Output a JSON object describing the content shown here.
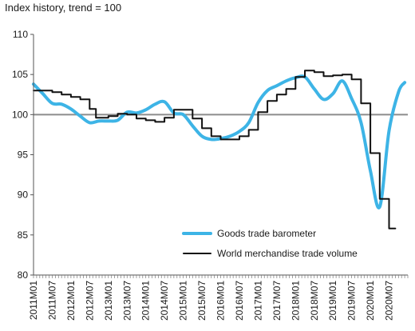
{
  "chart_data": {
    "type": "line",
    "title": "Index history, trend = 100",
    "xlabel": "",
    "ylabel": "",
    "ylim": [
      80,
      110
    ],
    "yticks": [
      80,
      85,
      90,
      95,
      100,
      105,
      110
    ],
    "reference_line": 100,
    "x_tick_labels": [
      "2011M01",
      "2011M07",
      "2012M01",
      "2012M07",
      "2013M01",
      "2013M07",
      "2014M01",
      "2014M07",
      "2015M01",
      "2015M07",
      "2016M01",
      "2016M07",
      "2017M01",
      "2017M07",
      "2018M01",
      "2018M07",
      "2019M01",
      "2019M07",
      "2020M01",
      "2020M07"
    ],
    "legend_position": "bottom-right",
    "series": [
      {
        "name": "Goods trade barometer",
        "color": "#3db4e6",
        "style": "line",
        "points": [
          [
            "2011M01",
            103.8
          ],
          [
            "2011M04",
            102.6
          ],
          [
            "2011M07",
            101.4
          ],
          [
            "2011M10",
            101.3
          ],
          [
            "2012M01",
            100.7
          ],
          [
            "2012M04",
            99.8
          ],
          [
            "2012M07",
            99.0
          ],
          [
            "2012M10",
            99.2
          ],
          [
            "2013M01",
            99.2
          ],
          [
            "2013M04",
            99.3
          ],
          [
            "2013M07",
            100.3
          ],
          [
            "2013M10",
            100.2
          ],
          [
            "2014M01",
            100.6
          ],
          [
            "2014M04",
            101.3
          ],
          [
            "2014M07",
            101.6
          ],
          [
            "2014M10",
            100.2
          ],
          [
            "2015M01",
            100.0
          ],
          [
            "2015M04",
            98.6
          ],
          [
            "2015M07",
            97.3
          ],
          [
            "2015M10",
            96.9
          ],
          [
            "2016M01",
            97.0
          ],
          [
            "2016M04",
            97.3
          ],
          [
            "2016M07",
            97.9
          ],
          [
            "2016M10",
            99.0
          ],
          [
            "2017M01",
            101.5
          ],
          [
            "2017M04",
            103.0
          ],
          [
            "2017M07",
            103.6
          ],
          [
            "2017M10",
            104.2
          ],
          [
            "2018M01",
            104.6
          ],
          [
            "2018M04",
            104.7
          ],
          [
            "2018M07",
            103.2
          ],
          [
            "2018M10",
            101.9
          ],
          [
            "2019M01",
            102.6
          ],
          [
            "2019M04",
            104.2
          ],
          [
            "2019M07",
            102.0
          ],
          [
            "2019M10",
            99.0
          ],
          [
            "2020M01",
            93.0
          ],
          [
            "2020M04",
            88.5
          ],
          [
            "2020M07",
            98.0
          ],
          [
            "2020M10",
            102.8
          ],
          [
            "2020M12",
            104.0
          ]
        ]
      },
      {
        "name": "World merchandise trade volume",
        "color": "#111111",
        "style": "step",
        "points": [
          [
            "2011M01",
            103.0
          ],
          [
            "2011M07",
            102.8
          ],
          [
            "2011M10",
            102.5
          ],
          [
            "2012M01",
            102.2
          ],
          [
            "2012M04",
            101.9
          ],
          [
            "2012M07",
            100.7
          ],
          [
            "2012M09",
            99.6
          ],
          [
            "2013M01",
            99.8
          ],
          [
            "2013M04",
            100.1
          ],
          [
            "2013M07",
            100.0
          ],
          [
            "2013M10",
            99.5
          ],
          [
            "2014M01",
            99.3
          ],
          [
            "2014M04",
            99.1
          ],
          [
            "2014M07",
            99.6
          ],
          [
            "2014M10",
            100.6
          ],
          [
            "2015M01",
            100.6
          ],
          [
            "2015M04",
            99.5
          ],
          [
            "2015M07",
            98.3
          ],
          [
            "2015M10",
            97.3
          ],
          [
            "2016M01",
            96.9
          ],
          [
            "2016M04",
            96.9
          ],
          [
            "2016M07",
            97.3
          ],
          [
            "2016M10",
            98.1
          ],
          [
            "2017M01",
            100.3
          ],
          [
            "2017M04",
            101.7
          ],
          [
            "2017M07",
            102.5
          ],
          [
            "2017M10",
            103.2
          ],
          [
            "2018M01",
            104.7
          ],
          [
            "2018M04",
            105.5
          ],
          [
            "2018M07",
            105.3
          ],
          [
            "2018M10",
            104.8
          ],
          [
            "2019M01",
            104.9
          ],
          [
            "2019M04",
            105.0
          ],
          [
            "2019M07",
            104.4
          ],
          [
            "2019M10",
            101.4
          ],
          [
            "2020M01",
            95.2
          ],
          [
            "2020M04",
            89.5
          ],
          [
            "2020M07",
            85.8
          ],
          [
            "2020M09",
            85.8
          ]
        ]
      }
    ]
  }
}
